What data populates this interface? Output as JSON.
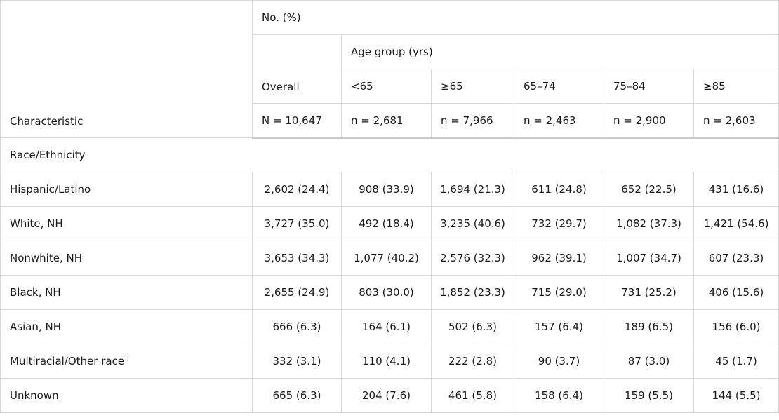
{
  "header": {
    "characteristic": "Characteristic",
    "no_pct": "No. (%)",
    "age_group": "Age group (yrs)",
    "columns": [
      {
        "label": "Overall",
        "n": "N = 10,647"
      },
      {
        "label": "<65",
        "n": "n = 2,681"
      },
      {
        "label": "≥65",
        "n": "n = 7,966"
      },
      {
        "label": "65–74",
        "n": "n = 2,463"
      },
      {
        "label": "75–84",
        "n": "n = 2,900"
      },
      {
        "label": "≥85",
        "n": "n = 2,603"
      }
    ]
  },
  "section": "Race/Ethnicity",
  "footnote_marker": "†",
  "rows": [
    {
      "label": "Hispanic/Latino",
      "values": [
        "2,602 (24.4)",
        "908 (33.9)",
        "1,694 (21.3)",
        "611 (24.8)",
        "652 (22.5)",
        "431 (16.6)"
      ]
    },
    {
      "label": "White, NH",
      "values": [
        "3,727 (35.0)",
        "492 (18.4)",
        "3,235 (40.6)",
        "732 (29.7)",
        "1,082 (37.3)",
        "1,421 (54.6)"
      ]
    },
    {
      "label": "Nonwhite, NH",
      "values": [
        "3,653 (34.3)",
        "1,077 (40.2)",
        "2,576 (32.3)",
        "962 (39.1)",
        "1,007 (34.7)",
        "607 (23.3)"
      ]
    },
    {
      "label": "Black, NH",
      "values": [
        "2,655 (24.9)",
        "803 (30.0)",
        "1,852 (23.3)",
        "715 (29.0)",
        "731 (25.2)",
        "406 (15.6)"
      ]
    },
    {
      "label": "Asian, NH",
      "values": [
        "666 (6.3)",
        "164 (6.1)",
        "502 (6.3)",
        "157 (6.4)",
        "189 (6.5)",
        "156 (6.0)"
      ]
    },
    {
      "label": "Multiracial/Other race",
      "values": [
        "332 (3.1)",
        "110 (4.1)",
        "222 (2.8)",
        "90 (3.7)",
        "87 (3.0)",
        "45 (1.7)"
      ]
    },
    {
      "label": "Unknown",
      "values": [
        "665 (6.3)",
        "204 (7.6)",
        "461 (5.8)",
        "158 (6.4)",
        "159 (5.5)",
        "144 (5.5)"
      ]
    }
  ]
}
